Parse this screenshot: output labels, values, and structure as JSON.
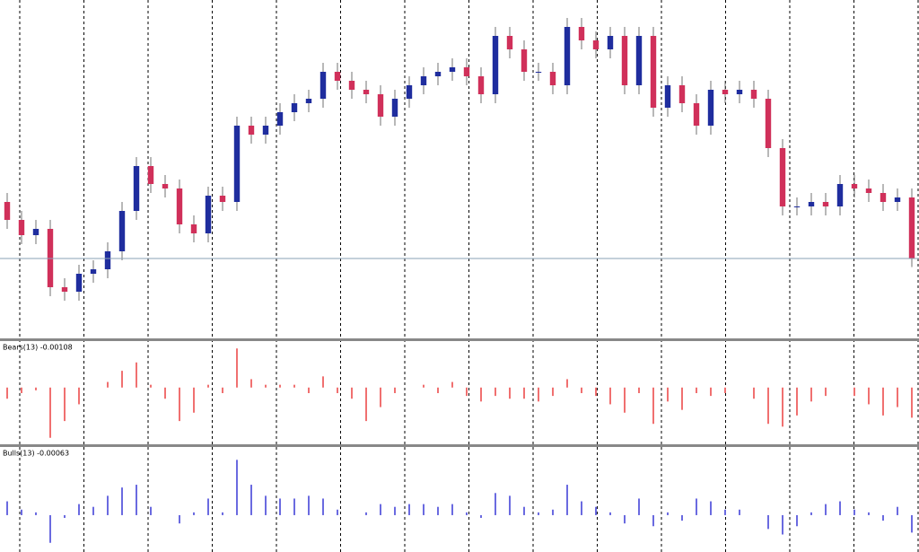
{
  "chart_data": [
    {
      "type": "candlestick",
      "color_up": "#1f2d9e",
      "color_down": "#d0305a",
      "wick_color": "#707070",
      "ylim": [
        1.09,
        1.105
      ],
      "open": [
        1.096,
        1.0952,
        1.09452,
        1.0948,
        1.0922,
        1.092,
        1.0928,
        1.093,
        1.0938,
        1.0956,
        1.0976,
        1.0968,
        1.0966,
        1.095,
        1.0946,
        1.09628,
        1.096,
        1.0994,
        1.099,
        1.0994,
        1.1,
        1.1004,
        1.1006,
        1.1018,
        1.1014,
        1.101,
        1.1008,
        1.0998,
        1.1006,
        1.1012,
        1.1016,
        1.1018,
        1.102,
        1.1016,
        1.1008,
        1.1034,
        1.1028,
        1.1018,
        1.1018,
        1.1012,
        1.1038,
        1.1032,
        1.1028,
        1.1034,
        1.1012,
        1.1034,
        1.1002,
        1.1012,
        1.1004,
        1.0994,
        1.101,
        1.1008,
        1.101,
        1.1006,
        1.0984,
        1.0958,
        1.0958,
        1.096,
        1.0958,
        1.0968,
        1.0966,
        1.0964,
        1.096,
        1.0962
      ],
      "high": [
        1.0964,
        1.0956,
        1.0952,
        1.0952,
        1.0926,
        1.0932,
        1.0934,
        1.0942,
        1.096,
        1.098,
        1.098,
        1.0972,
        1.097,
        1.0954,
        1.09668,
        1.09668,
        1.0998,
        1.0998,
        1.0998,
        1.1004,
        1.1008,
        1.101,
        1.1022,
        1.1022,
        1.1018,
        1.1014,
        1.1012,
        1.101,
        1.1016,
        1.102,
        1.1022,
        1.1024,
        1.1024,
        1.102,
        1.1038,
        1.1038,
        1.1032,
        1.1022,
        1.1022,
        1.1042,
        1.1042,
        1.1036,
        1.1038,
        1.1038,
        1.1038,
        1.1038,
        1.1016,
        1.1016,
        1.1008,
        1.1014,
        1.1014,
        1.1014,
        1.1014,
        1.101,
        1.0988,
        1.0962,
        1.0964,
        1.0964,
        1.0972,
        1.0972,
        1.097,
        1.0968,
        1.0966,
        1.0966
      ],
      "low": [
        1.0948,
        1.09412,
        1.09412,
        1.0918,
        1.0916,
        1.0916,
        1.0924,
        1.0926,
        1.0934,
        1.0952,
        1.0964,
        1.0962,
        1.0946,
        1.0942,
        1.0942,
        1.0956,
        1.0956,
        1.0986,
        1.0986,
        1.099,
        1.0996,
        1.1,
        1.1002,
        1.101,
        1.1006,
        1.1004,
        1.0994,
        1.0994,
        1.1002,
        1.1008,
        1.1012,
        1.1014,
        1.1012,
        1.1004,
        1.1004,
        1.1024,
        1.1014,
        1.1014,
        1.1008,
        1.1008,
        1.1028,
        1.1024,
        1.1024,
        1.1008,
        1.1008,
        1.0998,
        1.0998,
        1.1,
        1.099,
        1.099,
        1.1004,
        1.1004,
        1.1002,
        1.098,
        1.0954,
        1.0954,
        1.0954,
        1.0954,
        1.0954,
        1.0962,
        1.096,
        1.0956,
        1.0956,
        1.0931
      ],
      "close": [
        1.0952,
        1.09452,
        1.0948,
        1.0922,
        1.092,
        1.0928,
        1.093,
        1.0938,
        1.0956,
        1.0976,
        1.0968,
        1.0966,
        1.095,
        1.0946,
        1.09628,
        1.096,
        1.0994,
        1.099,
        1.0994,
        1.1,
        1.1004,
        1.1006,
        1.1018,
        1.1014,
        1.101,
        1.1008,
        1.0998,
        1.1006,
        1.1012,
        1.1016,
        1.1018,
        1.102,
        1.1016,
        1.1008,
        1.1034,
        1.1028,
        1.1018,
        1.1018,
        1.1012,
        1.1038,
        1.1032,
        1.1028,
        1.1034,
        1.1012,
        1.1034,
        1.1002,
        1.1012,
        1.1004,
        1.0994,
        1.101,
        1.1008,
        1.101,
        1.1006,
        1.0984,
        1.0958,
        1.0958,
        1.096,
        1.0958,
        1.0968,
        1.0966,
        1.0964,
        1.096,
        1.0962,
        1.09348
      ]
    },
    {
      "type": "bar",
      "title": "Bears(13) -0.00108",
      "color": "#f07070",
      "ylim": [
        -0.002,
        0.0016
      ],
      "values": [
        -0.0004,
        -0.0002,
        -0.0001,
        -0.0018,
        -0.0012,
        -0.0006,
        0.0,
        0.0002,
        0.0006,
        0.0009,
        0.0001,
        -0.0004,
        -0.0012,
        -0.0009,
        0.0001,
        -0.0002,
        0.0014,
        0.0003,
        0.0001,
        0.0001,
        0.0001,
        -0.0002,
        0.0004,
        -0.0002,
        -0.0004,
        -0.0012,
        -0.0007,
        -0.0002,
        0.0,
        0.0001,
        -0.0002,
        0.0002,
        -0.0003,
        -0.0005,
        -0.0003,
        -0.0004,
        -0.0004,
        -0.0005,
        -0.0003,
        0.0003,
        -0.0002,
        -0.0003,
        -0.0006,
        -0.0009,
        -0.0002,
        -0.0013,
        -0.0005,
        -0.0008,
        -0.0002,
        -0.0003,
        -0.0002,
        0.0,
        -0.0004,
        -0.0013,
        -0.0014,
        -0.001,
        -0.0005,
        -0.0003,
        0.0,
        -0.0003,
        -0.0006,
        -0.001,
        -0.0007,
        -0.00108
      ]
    },
    {
      "type": "bar",
      "title": "Bulls(13) -0.00063",
      "color": "#6a6ae0",
      "ylim": [
        -0.0013,
        0.0024
      ],
      "values": [
        0.0005,
        0.0002,
        0.0001,
        -0.001,
        -0.0001,
        0.0004,
        0.0003,
        0.0007,
        0.001,
        0.0011,
        0.0003,
        0.0,
        -0.0003,
        0.0001,
        0.0006,
        0.0001,
        0.002,
        0.0011,
        0.0007,
        0.0006,
        0.0006,
        0.0007,
        0.0006,
        0.0002,
        0.0,
        0.0001,
        0.0004,
        0.0003,
        0.0004,
        0.0004,
        0.0003,
        0.0004,
        0.0001,
        -0.0001,
        0.0008,
        0.0007,
        0.0003,
        0.0001,
        0.0002,
        0.0011,
        0.0005,
        0.0003,
        0.0001,
        -0.0003,
        0.0006,
        -0.0004,
        0.0001,
        -0.0002,
        0.0006,
        0.0005,
        0.0002,
        0.0002,
        0.0,
        -0.0005,
        -0.0007,
        -0.0004,
        0.0001,
        0.0004,
        0.0005,
        0.0002,
        0.0001,
        -0.0002,
        0.0003,
        -0.00063
      ]
    }
  ]
}
